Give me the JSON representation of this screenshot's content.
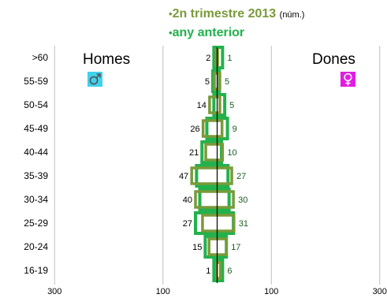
{
  "legend": {
    "bullet": "•",
    "series_1_name": "2n trimestre 2013",
    "series_1_unit": "(núm.)",
    "series_2_name": "any anterior"
  },
  "labels": {
    "men": "Homes",
    "women": "Dones"
  },
  "icons": {
    "men": "male-symbol-icon",
    "women": "female-symbol-icon",
    "men_color": "#3fd2ee",
    "women_color": "#e21ce2"
  },
  "colors": {
    "current": "#7a9a3a",
    "previous": "#22b14c",
    "center_line": "#000000",
    "grid": "#bfbfbf"
  },
  "chart_data": {
    "type": "bar",
    "orientation": "horizontal",
    "subtype": "population-pyramid",
    "categories": [
      "16-19",
      "20-24",
      "25-29",
      "30-34",
      "35-39",
      "40-44",
      "45-49",
      "50-54",
      "55-59",
      ">60"
    ],
    "series": [
      {
        "name": "2n trimestre 2013",
        "side": "Homes",
        "values": [
          1,
          15,
          27,
          40,
          47,
          21,
          26,
          14,
          5,
          2
        ]
      },
      {
        "name": "2n trimestre 2013",
        "side": "Dones",
        "values": [
          6,
          17,
          31,
          30,
          27,
          10,
          9,
          5,
          5,
          1
        ]
      },
      {
        "name": "any anterior",
        "side": "Homes",
        "values": [
          6,
          22,
          40,
          32,
          38,
          28,
          19,
          6,
          8,
          6
        ]
      },
      {
        "name": "any anterior",
        "side": "Dones",
        "values": [
          10,
          17,
          30,
          22,
          20,
          8,
          19,
          14,
          4,
          10
        ]
      }
    ],
    "men_data_labels": [
      "1",
      "15",
      "27",
      "40",
      "47",
      "21",
      "26",
      "14",
      "5",
      "2"
    ],
    "women_data_labels": [
      "6",
      "17",
      "31",
      "30",
      "27",
      "10",
      "9",
      "5",
      "5",
      "1"
    ],
    "x_ticks": [
      {
        "value": -300,
        "label": "300"
      },
      {
        "value": -100,
        "label": "100"
      },
      {
        "value": 100,
        "label": "100"
      },
      {
        "value": 300,
        "label": "300"
      }
    ],
    "xlim": [
      -300,
      300
    ],
    "grid": true,
    "legend_position": "top-center"
  }
}
